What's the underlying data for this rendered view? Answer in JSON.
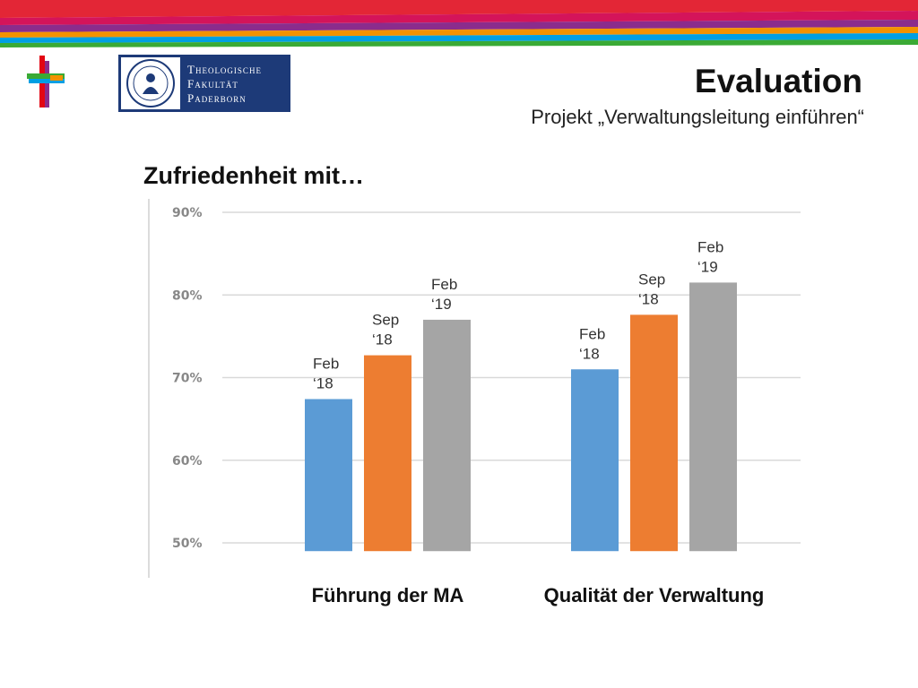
{
  "header": {
    "logo": {
      "line1": "Theologische",
      "line2": "Fakultät",
      "line3": "Paderborn"
    },
    "title": "Evaluation",
    "subtitle": "Projekt „Verwaltungsleitung einführen“",
    "stripe_colors": [
      "#e32636",
      "#d4145a",
      "#8b2c8c",
      "#f39200",
      "#009fe3",
      "#3aaa35"
    ],
    "cross_colors": [
      "#e30613",
      "#3aaa35",
      "#009fe3",
      "#f39200",
      "#8b2c8c"
    ]
  },
  "section_heading": "Zufriedenheit mit…",
  "chart_data": {
    "type": "bar",
    "categories": [
      "Führung der MA",
      "Qualität der Verwaltung"
    ],
    "series": [
      {
        "labels": [
          "Feb",
          "‘18"
        ],
        "color": "#5b9bd5",
        "values": [
          67.4,
          71.0
        ]
      },
      {
        "labels": [
          "Sep",
          "‘18"
        ],
        "color": "#ed7d31",
        "values": [
          72.7,
          77.6
        ]
      },
      {
        "labels": [
          "Feb",
          "‘19"
        ],
        "color": "#a5a5a5",
        "values": [
          77.0,
          81.5
        ]
      }
    ],
    "ylim": [
      49,
      90
    ],
    "yticks": [
      50,
      60,
      70,
      80,
      90
    ],
    "ytick_labels": [
      "50%",
      "60%",
      "70%",
      "80%",
      "90%"
    ],
    "grid": true
  }
}
